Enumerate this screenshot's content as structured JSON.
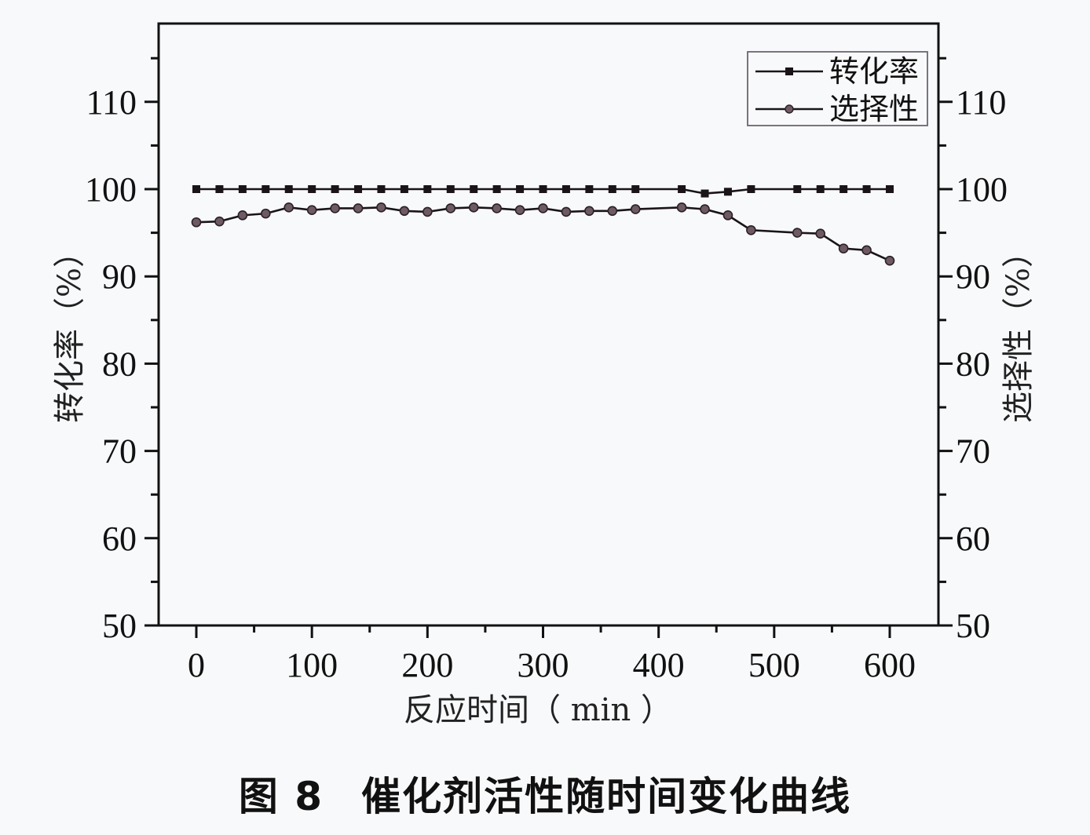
{
  "chart_data": {
    "type": "line",
    "title": "",
    "xlabel": "反应时间（ min ）",
    "ylabel_left": "转化率（%）",
    "ylabel_right": "选择性（%）",
    "xlim": [
      -30,
      645
    ],
    "ylim": [
      50,
      119
    ],
    "x_ticks": [
      0,
      100,
      200,
      300,
      400,
      500,
      600
    ],
    "x_minor_ticks": [
      -50,
      50,
      150,
      250,
      350,
      450,
      550,
      650
    ],
    "y_ticks": [
      50,
      60,
      70,
      80,
      90,
      100,
      110
    ],
    "grid": false,
    "legend_position": "upper right",
    "series": [
      {
        "name": "转化率",
        "marker": "square",
        "color": "#1a1418",
        "x": [
          0,
          20,
          40,
          60,
          80,
          100,
          120,
          140,
          160,
          180,
          200,
          220,
          240,
          260,
          280,
          300,
          320,
          340,
          360,
          380,
          420,
          440,
          460,
          480,
          520,
          540,
          560,
          580,
          600
        ],
        "values": [
          100,
          100,
          100,
          100,
          100,
          100,
          100,
          100,
          100,
          100,
          100,
          100,
          100,
          100,
          100,
          100,
          100,
          100,
          100,
          100,
          100,
          99.5,
          99.7,
          100,
          100,
          100,
          100,
          100,
          100
        ]
      },
      {
        "name": "选择性",
        "marker": "circle",
        "color": "#6e5a64",
        "x": [
          0,
          20,
          40,
          60,
          80,
          100,
          120,
          140,
          160,
          180,
          200,
          220,
          240,
          260,
          280,
          300,
          320,
          340,
          360,
          380,
          420,
          440,
          460,
          480,
          520,
          540,
          560,
          580,
          600
        ],
        "values": [
          96.2,
          96.3,
          97.0,
          97.2,
          97.9,
          97.6,
          97.8,
          97.8,
          97.9,
          97.5,
          97.4,
          97.8,
          97.9,
          97.8,
          97.6,
          97.8,
          97.4,
          97.5,
          97.5,
          97.7,
          97.9,
          97.7,
          97.0,
          95.3,
          95.0,
          94.9,
          93.2,
          93.0,
          91.8
        ]
      }
    ]
  },
  "caption": {
    "figure_number": "图 8",
    "text": "催化剂活性随时间变化曲线"
  }
}
